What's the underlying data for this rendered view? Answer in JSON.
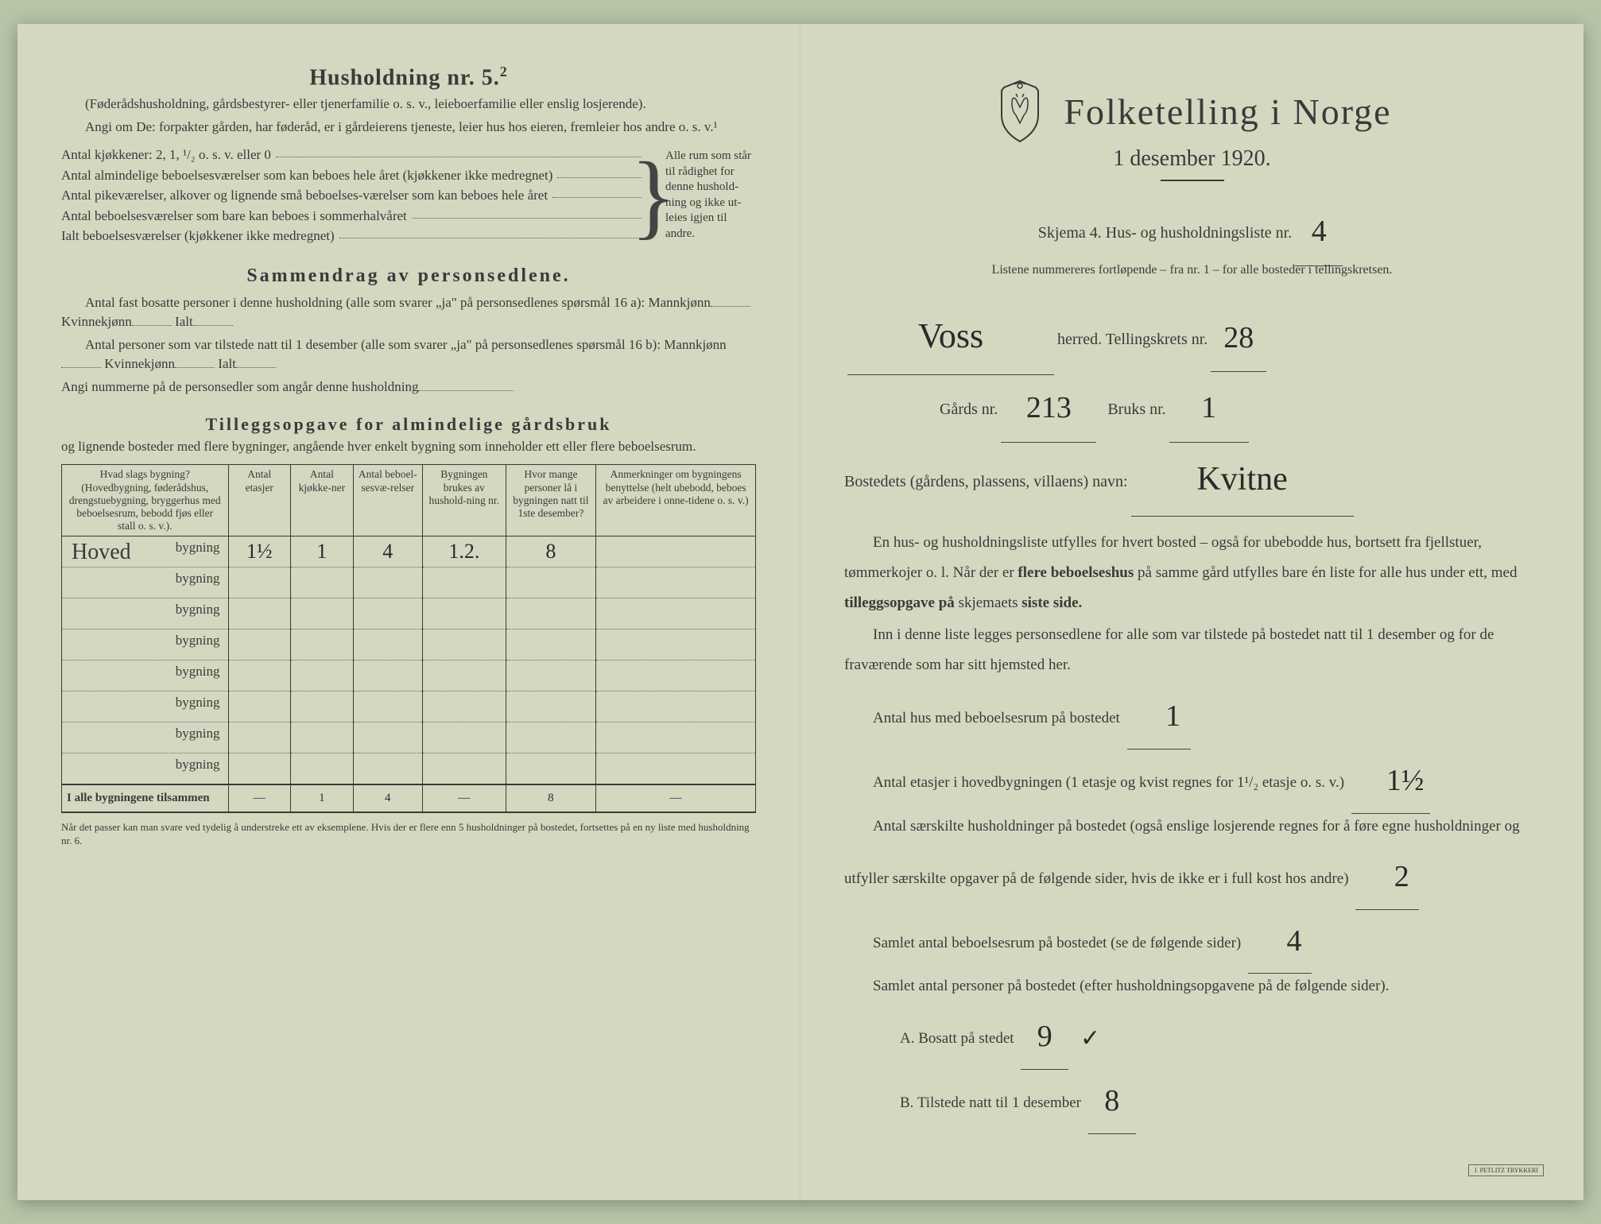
{
  "left": {
    "heading": "Husholdning nr. 5.",
    "heading_sup": "2",
    "intro1": "(Føderådshusholdning, gårdsbestyrer- eller tjenerfamilie o. s. v., leieboerfamilie eller enslig losjerende).",
    "intro2": "Angi om De: forpakter gården, har føderåd, er i gårdeierens tjeneste, leier hus hos eieren, fremleier hos andre o. s. v.¹",
    "kitchens_label": "Antal kjøkkener: 2, 1, ¹/₂ o. s. v. eller 0",
    "rooms1": "Antal almindelige beboelsesværelser som kan beboes hele året (kjøkkener ikke medregnet)",
    "rooms2": "Antal pikeværelser, alkover og lignende små beboelses-værelser som kan beboes hele året",
    "rooms3": "Antal beboelsesværelser som bare kan beboes i sommerhalvåret",
    "rooms_total": "Ialt beboelsesværelser (kjøkkener ikke medregnet)",
    "brace_text": "Alle rum som står til rådighet for denne hushold-ning og ikke ut-leies igjen til andre.",
    "sammendrag_heading": "Sammendrag av personsedlene.",
    "sammen1": "Antal fast bosatte personer i denne husholdning (alle som svarer „ja\" på personsedlenes spørsmål 16 a): Mannkjønn",
    "kvinne": "Kvinnekjønn",
    "ialt": "Ialt",
    "sammen2": "Antal personer som var tilstede natt til 1 desember (alle som svarer „ja\" på personsedlenes spørsmål 16 b): Mannkjønn",
    "sammen3": "Angi nummerne på de personsedler som angår denne husholdning",
    "tillegg_heading": "Tilleggsopgave for almindelige gårdsbruk",
    "tillegg_sub": "og lignende bosteder med flere bygninger, angående hver enkelt bygning som inneholder ett eller flere beboelsesrum.",
    "table": {
      "headers": [
        "Hvad slags bygning?\n(Hovedbygning, føderådshus, drengstuebygning, bryggerhus med beboelsesrum, bebodd fjøs eller stall o. s. v.).",
        "Antal etasjer",
        "Antal kjøkke-ner",
        "Antal beboel-sesvæ-relser",
        "Bygningen brukes av hushold-ning nr.",
        "Hvor mange personer lå i bygningen natt til 1ste desember?",
        "Anmerkninger om bygningens benyttelse (helt ubebodd, beboes av arbeidere i onne-tidene o. s. v.)"
      ],
      "row1_prefix": "Hoved",
      "bygning_suffix": "bygning",
      "row1": [
        "1½",
        "1",
        "4",
        "1.2.",
        "8",
        ""
      ],
      "empty_rows": 7,
      "totals_label": "I alle bygningene tilsammen",
      "totals": [
        "—",
        "1",
        "4",
        "—",
        "8",
        "—"
      ]
    },
    "footnote": "Når det passer kan man svare ved tydelig å understreke ett av eksemplene.\nHvis der er flere enn 5 husholdninger på bostedet, fortsettes på en ny liste med husholdning nr. 6."
  },
  "right": {
    "main_title": "Folketelling i Norge",
    "subtitle": "1 desember 1920.",
    "skjema_line": "Skjema 4.  Hus- og husholdningsliste nr.",
    "liste_nr": "4",
    "small_note": "Listene nummereres fortløpende – fra nr. 1 – for alle bosteder i tellingskretsen.",
    "herred_value": "Voss",
    "herred_label": "herred.  Tellingskrets nr.",
    "krets_nr": "28",
    "gards_label": "Gårds nr.",
    "gards_nr": "213",
    "bruks_label": "Bruks nr.",
    "bruks_nr": "1",
    "bosted_label": "Bostedets (gårdens, plassens, villaens) navn:",
    "bosted_value": "Kvitne",
    "para1": "En hus- og husholdningsliste utfylles for hvert bosted – også for ubebodde hus, bortsett fra fjellstuer, tømmerkojer o. l.  Når der er ",
    "para1_bold": "flere beboelseshus",
    "para1_cont": " på samme gård utfylles bare én liste for alle hus under ett, med ",
    "para1_bold2": "tilleggsopgave på",
    "para1_cont2": " skjemaets ",
    "para1_bold3": "siste side.",
    "para2": "Inn i denne liste legges personsedlene for alle som var tilstede på bostedet natt til 1 desember og for de fraværende som har sitt hjemsted her.",
    "stat1_label": "Antal hus med beboelsesrum på bostedet",
    "stat1_value": "1",
    "stat2_label": "Antal etasjer i hovedbygningen (1 etasje og kvist regnes for 1¹/₂ etasje o. s. v.)",
    "stat2_value": "1½",
    "stat3_label": "Antal særskilte husholdninger på bostedet (også enslige losjerende regnes for å føre egne husholdninger og utfyller særskilte opgaver på de følgende sider, hvis de ikke er i full kost hos andre)",
    "stat3_value": "2",
    "stat4_label": "Samlet antal beboelsesrum på bostedet (se de følgende sider)",
    "stat4_value": "4",
    "stat5_label": "Samlet antal personer på bostedet (efter husholdningsopgavene på de følgende sider).",
    "statA_label": "A.  Bosatt på stedet",
    "statA_value": "9",
    "statB_label": "B.  Tilstede natt til 1 desember",
    "statB_value": "8",
    "printer": "J. PETLITZ TRYKKERI"
  },
  "colors": {
    "paper": "#d4d8c0",
    "ink": "#3a3a3a",
    "handwriting": "#2a2a2a",
    "background": "#b8c4a8"
  }
}
